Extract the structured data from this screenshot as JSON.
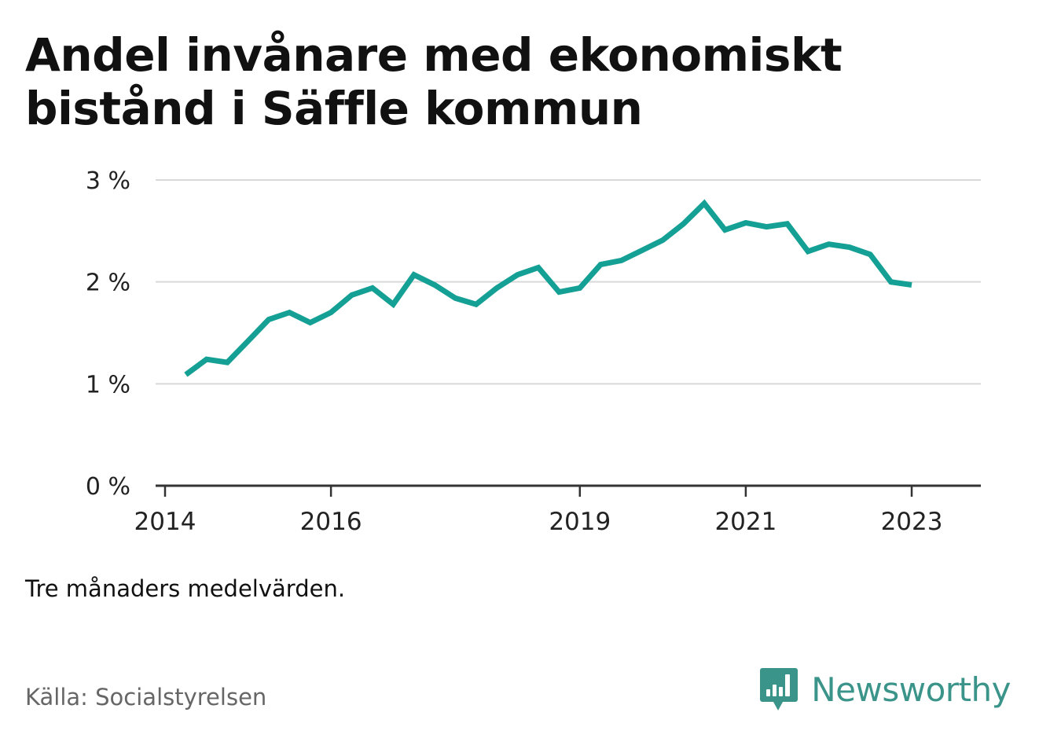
{
  "title_line1": "Andel invånare med ekonomiskt",
  "title_line2": "bistånd i Säffle kommun",
  "note": "Tre månaders medelvärden.",
  "source": "Källa: Socialstyrelsen",
  "brand": {
    "name": "Newsworthy",
    "icon": "bar-chart-speech-bubble-icon",
    "color": "#3a9489"
  },
  "colors": {
    "line": "#14a094",
    "grid": "#d9d9d9",
    "axis": "#333333"
  },
  "chart_data": {
    "type": "line",
    "title": "Andel invånare med ekonomiskt bistånd i Säffle kommun",
    "xlabel": "",
    "ylabel": "",
    "ylim": [
      0,
      3
    ],
    "yticks": [
      {
        "value": 0,
        "label": "0 %"
      },
      {
        "value": 1,
        "label": "1 %"
      },
      {
        "value": 2,
        "label": "2 %"
      },
      {
        "value": 3,
        "label": "3 %"
      }
    ],
    "xlim": [
      "2014-01",
      "2023-06"
    ],
    "xticks": [
      {
        "value": "2014-01",
        "label": "2014"
      },
      {
        "value": "2016-01",
        "label": "2016"
      },
      {
        "value": "2019-01",
        "label": "2019"
      },
      {
        "value": "2021-01",
        "label": "2021"
      },
      {
        "value": "2023-01",
        "label": "2023"
      }
    ],
    "grid": true,
    "series": [
      {
        "x": [
          "2014-04",
          "2014-07",
          "2014-10",
          "2015-01",
          "2015-04",
          "2015-07",
          "2015-10",
          "2016-01",
          "2016-04",
          "2016-07",
          "2016-10",
          "2017-01",
          "2017-04",
          "2017-07",
          "2017-10",
          "2018-01",
          "2018-04",
          "2018-07",
          "2018-10",
          "2019-01",
          "2019-04",
          "2019-07",
          "2019-10",
          "2020-01",
          "2020-04",
          "2020-07",
          "2020-10",
          "2021-01",
          "2021-04",
          "2021-07",
          "2021-10",
          "2022-01",
          "2022-04",
          "2022-07",
          "2022-10",
          "2023-01"
        ],
        "values": [
          1.09,
          1.24,
          1.21,
          1.42,
          1.63,
          1.7,
          1.6,
          1.7,
          1.87,
          1.94,
          1.78,
          2.07,
          1.97,
          1.84,
          1.78,
          1.94,
          2.07,
          2.14,
          1.9,
          1.94,
          2.17,
          2.21,
          2.31,
          2.41,
          2.57,
          2.77,
          2.51,
          2.58,
          2.54,
          2.57,
          2.3,
          2.37,
          2.34,
          2.27,
          2.0,
          1.97
        ]
      }
    ]
  }
}
